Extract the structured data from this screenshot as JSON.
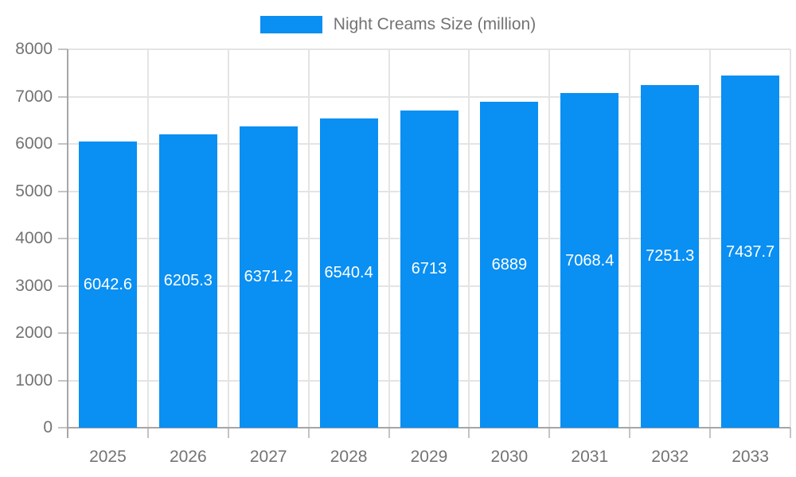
{
  "legend": {
    "label": "Night Creams Size (million)"
  },
  "chart_data": {
    "type": "bar",
    "title": "Night Creams Size (million)",
    "categories": [
      "2025",
      "2026",
      "2027",
      "2028",
      "2029",
      "2030",
      "2031",
      "2032",
      "2033"
    ],
    "values": [
      6042.6,
      6205.3,
      6371.2,
      6540.4,
      6713,
      6889,
      7068.4,
      7251.3,
      7437.7
    ],
    "value_labels": [
      "6042.6",
      "6205.3",
      "6371.2",
      "6540.4",
      "6713",
      "6889",
      "7068.4",
      "7251.3",
      "7437.7"
    ],
    "series_name": "Night Creams Size (million)",
    "xlabel": "",
    "ylabel": "",
    "ylim": [
      0,
      8000
    ],
    "ytick_step": 1000,
    "ytick_labels": [
      "0",
      "1000",
      "2000",
      "3000",
      "4000",
      "5000",
      "6000",
      "7000",
      "8000"
    ],
    "grid": true,
    "legend_position": "top",
    "colors": {
      "bar": "#0a8ff2",
      "value_label": "#ffffff",
      "axis_text": "#737373",
      "legend_text": "#737373",
      "gridline": "#e4e4e4",
      "axis_line": "#a6a6a6",
      "tick": "#c4c4c4",
      "background": "#ffffff"
    }
  }
}
